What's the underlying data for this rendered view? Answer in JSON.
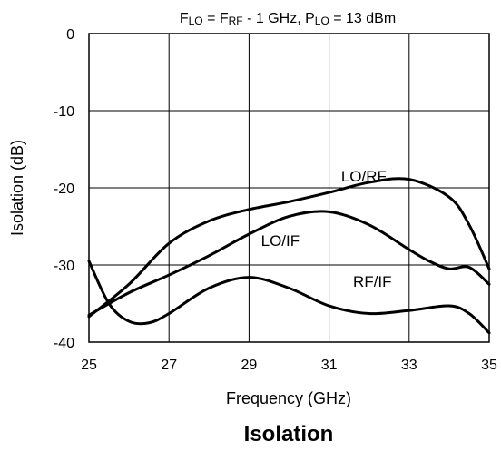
{
  "chart_data": {
    "type": "line",
    "title": "Isolation",
    "subtitle_parts": {
      "f1": "F",
      "lo1": "LO",
      "eq1": " = F",
      "rf": "RF",
      "rest1": " - 1 GHz, P",
      "lo2": "LO",
      "rest2": " = 13 dBm"
    },
    "xlabel": "Frequency (GHz)",
    "ylabel": "Isolation (dB)",
    "xlim": [
      25,
      35
    ],
    "ylim": [
      -40,
      0
    ],
    "x_ticks": [
      "25",
      "27",
      "29",
      "31",
      "33",
      "35"
    ],
    "y_ticks": [
      "0",
      "-10",
      "-20",
      "-30",
      "-40"
    ],
    "grid": true,
    "series": [
      {
        "name": "LO/RF",
        "x": [
          25,
          26,
          27,
          28,
          29,
          30,
          31,
          32,
          33,
          34,
          34.5,
          35
        ],
        "y": [
          -36.7,
          -32.5,
          -27.2,
          -24.3,
          -22.8,
          -21.8,
          -20.6,
          -19.3,
          -18.9,
          -21.2,
          -24.8,
          -30.5
        ]
      },
      {
        "name": "LO/IF",
        "x": [
          25,
          26,
          27,
          28,
          29,
          30,
          31,
          32,
          33,
          33.5,
          34,
          34.5,
          35
        ],
        "y": [
          -36.5,
          -33.6,
          -31.3,
          -28.8,
          -26.0,
          -23.7,
          -23.1,
          -24.8,
          -28.0,
          -29.5,
          -30.5,
          -30.3,
          -32.5
        ]
      },
      {
        "name": "RF/IF",
        "x": [
          25,
          25.5,
          26,
          26.5,
          27,
          28,
          29,
          30,
          31,
          32,
          33,
          34,
          34.5,
          35
        ],
        "y": [
          -29.5,
          -35.0,
          -37.3,
          -37.5,
          -36.3,
          -33.0,
          -31.6,
          -33.0,
          -35.3,
          -36.3,
          -35.9,
          -35.3,
          -36.3,
          -38.8
        ]
      }
    ],
    "series_labels": [
      {
        "text": "LO/RF",
        "x": 31.3,
        "y": -19.2
      },
      {
        "text": "LO/IF",
        "x": 29.3,
        "y": -27.5
      },
      {
        "text": "RF/IF",
        "x": 31.6,
        "y": -32.8
      }
    ],
    "line_color": "#000000",
    "grid_color": "#000000"
  }
}
